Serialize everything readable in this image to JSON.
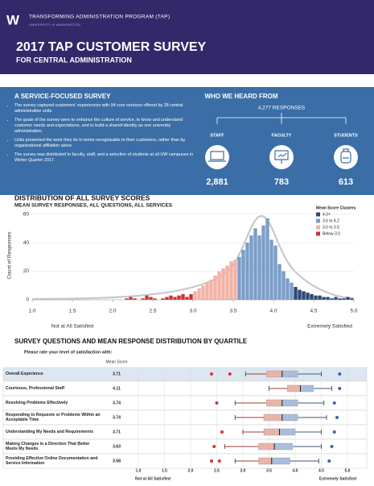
{
  "header": {
    "logo": "W",
    "program": "TRANSFORMING ADMINISTRATION PROGRAM (TAP)",
    "university": "UNIVERSITY of WASHINGTON",
    "title": "2017 TAP CUSTOMER SURVEY",
    "subtitle": "FOR CENTRAL ADMINISTRATION"
  },
  "about": {
    "title": "A SERVICE-FOCUSED SURVEY",
    "bullets": [
      "The survey captured customers' experiences with 94 core services offered by 28 central administrative units.",
      "The goals of the survey were to enhance the culture of service, to know and understand customer needs and expectations, and to build a shared identity as one university administration.",
      "Units presented the work they do in terms recognizable to their customers, rather than by organizational affiliation alone.",
      "The survey was distributed to faculty, staff, and a selection of students at all UW campuses in Winter Quarter 2017."
    ]
  },
  "respondents": {
    "title": "WHO WE HEARD FROM",
    "total": "4,277 RESPONSES",
    "groups": [
      {
        "label": "STAFF",
        "count": "2,881"
      },
      {
        "label": "FACULTY",
        "count": "783"
      },
      {
        "label": "STUDENTS",
        "count": "613"
      }
    ]
  },
  "chart_data": [
    {
      "type": "histogram",
      "title": "DISTRIBUTION OF ALL SURVEY SCORES",
      "subtitle": "MEAN SURVEY RESPONSES, ALL QUESTIONS, ALL SERVICES",
      "ylabel": "Count of Responses",
      "low_label": "Not at All Satisfied",
      "high_label": "Extremely Satisfied",
      "xlim": [
        1,
        5
      ],
      "xticks": [
        {
          "value": 1,
          "label": "1.0"
        },
        1.5,
        {
          "value": 2,
          "label": "2.0"
        },
        2.5,
        {
          "value": 3,
          "label": "3.0"
        },
        3.5,
        {
          "value": 4,
          "label": "4.0"
        },
        4.5,
        {
          "value": 5,
          "label": "5.0"
        }
      ],
      "ylim": [
        0,
        62
      ],
      "yticks": [
        0,
        20,
        40,
        60
      ],
      "grid": true,
      "legend_title": "Mean Score Clusters",
      "legend": "top-right",
      "series": [
        {
          "name": "4.3+",
          "color": "#2e4a73",
          "bins": [
            4.25,
            4.3,
            4.35,
            4.4,
            4.45,
            4.5,
            4.55,
            4.6,
            4.65,
            4.7,
            4.75,
            4.8,
            4.85,
            4.9,
            4.95,
            5.0
          ],
          "values": [
            9,
            7,
            6,
            5,
            4,
            3,
            3,
            2,
            2,
            1,
            2,
            1,
            1,
            2,
            1
          ]
        },
        {
          "name": "3.6 to 4.2",
          "color": "#7b9dc8",
          "bins": [
            3.55,
            3.6,
            3.65,
            3.7,
            3.75,
            3.8,
            3.85,
            3.9,
            3.95,
            4.0,
            4.05,
            4.1,
            4.15,
            4.2,
            4.25
          ],
          "values": [
            30,
            35,
            40,
            45,
            50,
            45,
            52,
            57,
            42,
            38,
            25,
            20,
            15,
            12
          ]
        },
        {
          "name": "3.0 to 3.5",
          "color": "#f2b3a6",
          "bins": [
            3.0,
            3.05,
            3.1,
            3.15,
            3.2,
            3.25,
            3.3,
            3.35,
            3.4,
            3.45,
            3.5,
            3.55
          ],
          "values": [
            6,
            8,
            10,
            12,
            14,
            17,
            20,
            22,
            24,
            27,
            28
          ]
        },
        {
          "name": "Below 3.0",
          "color": "#c9353c",
          "bins": [
            2.0,
            2.05,
            2.1,
            2.15,
            2.2,
            2.25,
            2.3,
            2.35,
            2.4,
            2.45,
            2.5,
            2.55,
            2.6,
            2.65,
            2.7,
            2.75,
            2.8,
            2.85,
            2.9,
            2.95,
            3.0
          ],
          "values": [
            0,
            0,
            0,
            1,
            2,
            1,
            0,
            1,
            3,
            2,
            1,
            0,
            1,
            2,
            3,
            2,
            3,
            4,
            2,
            4
          ]
        }
      ]
    },
    {
      "type": "boxplot",
      "title": "SURVEY QUESTIONS AND MEAN RESPONSE DISTRIBUTION BY QUARTILE",
      "prompt": "Please rate your level of satisfaction with:",
      "mean_header": "Mean Score",
      "low_label": "Not at All Satisfied",
      "high_label": "Extremely Satisfied",
      "xlim": [
        1,
        5
      ],
      "xticks": [
        {
          "value": 1,
          "label": "1.0"
        },
        1.5,
        {
          "value": 2,
          "label": "2.0"
        },
        2.5,
        {
          "value": 3,
          "label": "3.0"
        },
        3.5,
        {
          "value": 4,
          "label": "4.0"
        },
        4.5,
        {
          "value": 5,
          "label": "5.0"
        }
      ],
      "categories": [
        "Overall Experience",
        "Courteous, Professional Staff",
        "Resolving Problems Effectively",
        "Responding to Requests or Problems Within an Acceptable Time",
        "Understanding My Needs and Requirements",
        "Making Changes in a Direction That Better Meets My Needs",
        "Providing Effective Online Documentation and Service Information"
      ],
      "means": [
        "3.71",
        "4.11",
        "3.74",
        "3.74",
        "3.71",
        "3.63",
        "3.58"
      ],
      "boxes": [
        {
          "low_outliers": [
            2.4,
            2.75
          ],
          "whisker_low": 3.05,
          "q1": 3.45,
          "median": 3.75,
          "q3": 4.05,
          "whisker_high": 4.5,
          "high_outliers": [
            4.85
          ]
        },
        {
          "low_outliers": [],
          "whisker_low": 3.5,
          "q1": 3.85,
          "median": 4.1,
          "q3": 4.35,
          "whisker_high": 4.7,
          "high_outliers": [
            4.85
          ]
        },
        {
          "low_outliers": [
            2.5
          ],
          "whisker_low": 2.85,
          "q1": 3.45,
          "median": 3.75,
          "q3": 4.05,
          "whisker_high": 4.55,
          "high_outliers": [
            4.75
          ]
        },
        {
          "low_outliers": [],
          "whisker_low": 2.85,
          "q1": 3.4,
          "median": 3.75,
          "q3": 4.05,
          "whisker_high": 4.6,
          "high_outliers": [
            4.8
          ]
        },
        {
          "low_outliers": [
            2.6
          ],
          "whisker_low": 3.0,
          "q1": 3.4,
          "median": 3.7,
          "q3": 4.0,
          "whisker_high": 4.5,
          "high_outliers": [
            4.75
          ]
        },
        {
          "low_outliers": [
            2.45
          ],
          "whisker_low": 2.65,
          "q1": 3.3,
          "median": 3.6,
          "q3": 3.95,
          "whisker_high": 4.5,
          "high_outliers": [
            4.7
          ]
        },
        {
          "low_outliers": [
            2.4,
            2.55
          ],
          "whisker_low": 2.85,
          "q1": 3.3,
          "median": 3.55,
          "q3": 3.9,
          "whisker_high": 4.45,
          "high_outliers": [
            4.65
          ]
        }
      ]
    }
  ]
}
